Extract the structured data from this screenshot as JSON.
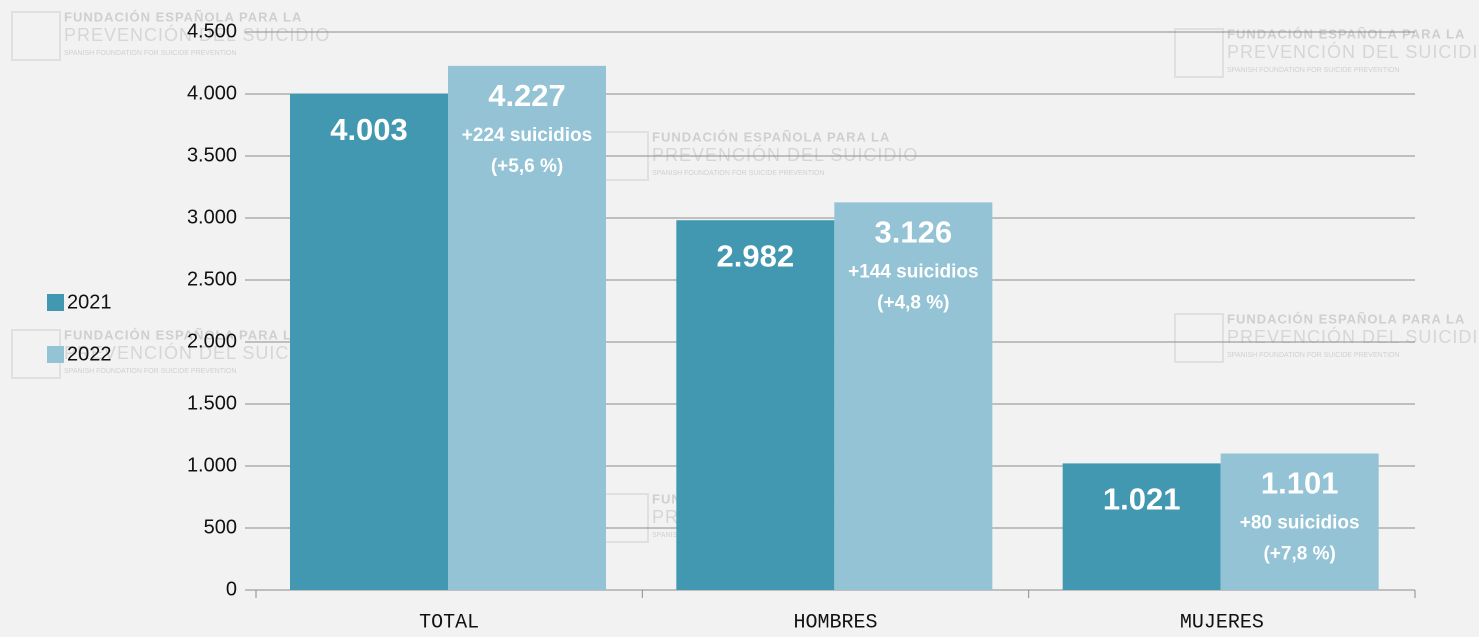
{
  "chart_data": {
    "type": "bar",
    "categories": [
      "TOTAL",
      "HOMBRES",
      "MUJERES"
    ],
    "series": [
      {
        "name": "2021",
        "color": "#4298b0",
        "values": [
          4003,
          2982,
          1021
        ],
        "value_labels": [
          "4.003",
          "2.982",
          "1.021"
        ]
      },
      {
        "name": "2022",
        "color": "#93c3d5",
        "values": [
          4227,
          3126,
          1101
        ],
        "value_labels": [
          "4.227",
          "3.126",
          "1.101"
        ]
      }
    ],
    "annotations": [
      [
        "+224 suicidios",
        "(+5,6 %)"
      ],
      [
        "+144 suicidios",
        "(+4,8 %)"
      ],
      [
        "+80 suicidios",
        "(+7,8 %)"
      ]
    ],
    "ylim": [
      0,
      4500
    ],
    "yticks": [
      0,
      500,
      {
        "value": 1000,
        "label": "1.000"
      },
      {
        "value": 1500,
        "label": "1.500"
      },
      {
        "value": 2000,
        "label": "2.000"
      },
      {
        "value": 2500,
        "label": "2.500"
      },
      {
        "value": 3000,
        "label": "3.000"
      },
      {
        "value": 3500,
        "label": "3.500"
      },
      {
        "value": 4000,
        "label": "4.000"
      },
      {
        "value": 4500,
        "label": "4.500"
      }
    ],
    "grid": true,
    "legend": "left",
    "watermark": [
      "FUNDACIÓN ESPAÑOLA PARA LA",
      "PREVENCIÓN DEL SUICIDIO",
      "SPANISH FOUNDATION FOR SUICIDE PREVENTION"
    ]
  }
}
